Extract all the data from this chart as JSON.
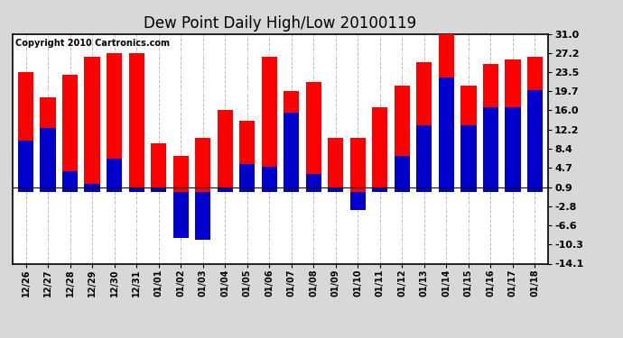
{
  "title": "Dew Point Daily High/Low 20100119",
  "copyright": "Copyright 2010 Cartronics.com",
  "labels": [
    "12/26",
    "12/27",
    "12/28",
    "12/29",
    "12/30",
    "12/31",
    "01/01",
    "01/02",
    "01/03",
    "01/04",
    "01/05",
    "01/06",
    "01/07",
    "01/08",
    "01/09",
    "01/10",
    "01/11",
    "01/12",
    "01/13",
    "01/14",
    "01/15",
    "01/16",
    "01/17",
    "01/18"
  ],
  "high": [
    23.5,
    18.5,
    23.0,
    26.5,
    27.2,
    27.2,
    9.5,
    7.0,
    10.5,
    16.0,
    14.0,
    26.5,
    19.7,
    21.5,
    10.5,
    10.5,
    16.5,
    20.8,
    25.5,
    31.0,
    20.8,
    25.0,
    26.0,
    26.5
  ],
  "low": [
    10.0,
    12.5,
    4.0,
    1.5,
    6.5,
    0.9,
    0.9,
    -9.0,
    -9.5,
    0.9,
    5.5,
    5.0,
    15.5,
    3.5,
    0.9,
    -3.5,
    0.9,
    7.0,
    13.0,
    22.5,
    13.0,
    16.5,
    16.5,
    20.0
  ],
  "high_color": "#ff0000",
  "low_color": "#0000cc",
  "bg_color": "#d8d8d8",
  "plot_bg_color": "#ffffff",
  "grid_color": "#bbbbbb",
  "title_fontsize": 12,
  "ytick_labels": [
    "-14.1",
    "-10.3",
    "-6.6",
    "-2.8",
    "0.9",
    "4.7",
    "8.4",
    "12.2",
    "16.0",
    "19.7",
    "23.5",
    "27.2",
    "31.0"
  ],
  "ytick_values": [
    -14.1,
    -10.3,
    -6.6,
    -2.8,
    0.9,
    4.7,
    8.4,
    12.2,
    16.0,
    19.7,
    23.5,
    27.2,
    31.0
  ],
  "ylim_min": -14.1,
  "ylim_max": 31.0,
  "bar_width": 0.7
}
